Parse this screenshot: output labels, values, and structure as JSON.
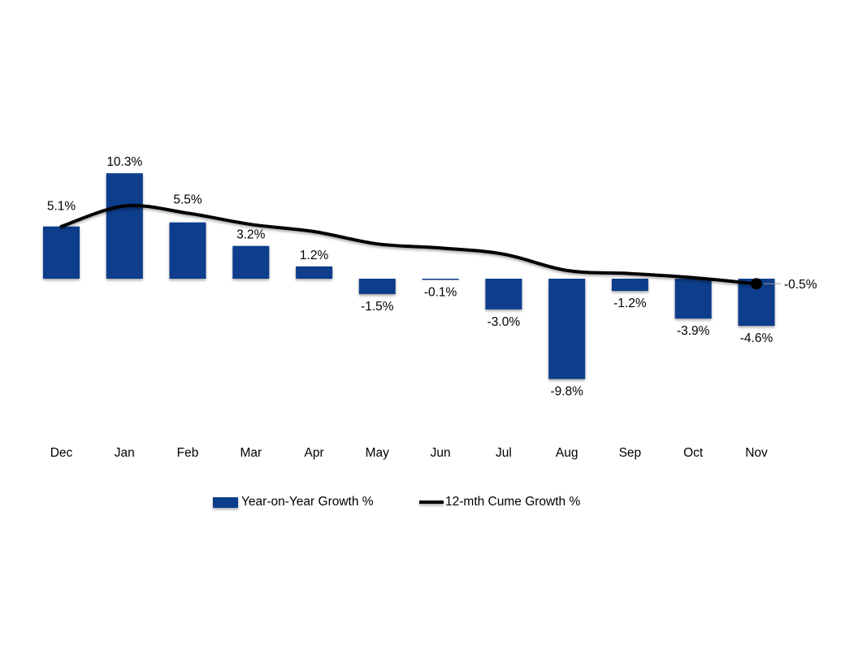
{
  "chart_data": {
    "type": "bar",
    "subtype": "combo-bar-line",
    "title": "",
    "xlabel": "",
    "ylabel": "",
    "grid": false,
    "legend_position": "bottom",
    "ylim": [
      -10.5,
      11
    ],
    "categories": [
      "Dec",
      "Jan",
      "Feb",
      "Mar",
      "Apr",
      "May",
      "Jun",
      "Jul",
      "Aug",
      "Sep",
      "Oct",
      "Nov"
    ],
    "series": [
      {
        "name": "Year-on-Year Growth %",
        "type": "bar",
        "color": "#0b3d8b",
        "values": [
          5.1,
          10.3,
          5.5,
          3.2,
          1.2,
          -1.5,
          -0.1,
          -3.0,
          -9.8,
          -1.2,
          -3.9,
          -4.6
        ],
        "labels": [
          "5.1%",
          "10.3%",
          "5.5%",
          "3.2%",
          "1.2%",
          "-1.5%",
          "-0.1%",
          "-3.0%",
          "-9.8%",
          "-1.2%",
          "-3.9%",
          "-4.6%"
        ]
      },
      {
        "name": "12-mth Cume Growth %",
        "type": "line",
        "color": "#000000",
        "values": [
          5.1,
          7.1,
          6.4,
          5.3,
          4.6,
          3.4,
          3.0,
          2.4,
          0.8,
          0.5,
          0.1,
          -0.5
        ],
        "end_label": "-0.5%"
      }
    ]
  },
  "colors": {
    "bar": "#0b3d8b",
    "line": "#000000",
    "axis": "#000000",
    "leader": "#9b9b9b",
    "text": "#000000"
  },
  "legend": {
    "items": [
      {
        "label": "Year-on-Year Growth %",
        "swatch": "bar"
      },
      {
        "label": "12-mth Cume Growth %",
        "swatch": "line"
      }
    ]
  }
}
